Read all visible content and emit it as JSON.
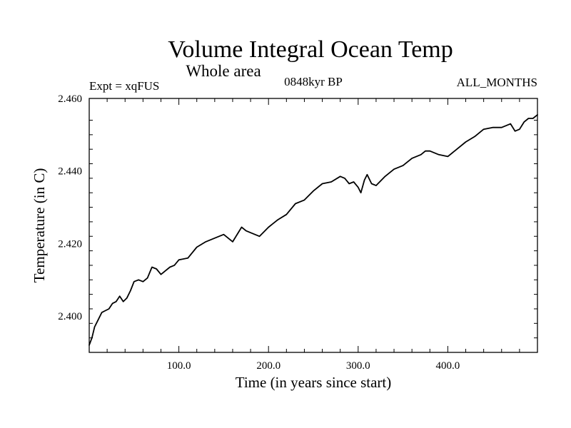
{
  "chart_data": {
    "type": "line",
    "title": "Volume Integral Ocean Temp",
    "subtitle": "Whole area",
    "annotations": {
      "left": "Expt = xqFUS",
      "center": "0848kyr BP",
      "right": "ALL_MONTHS"
    },
    "xlabel": "Time (in years since start)",
    "ylabel": "Temperature (in C)",
    "xlim": [
      0,
      500
    ],
    "ylim": [
      2.39,
      2.46
    ],
    "x_ticks": [
      100,
      200,
      300,
      400
    ],
    "x_tick_labels": [
      "100.0",
      "200.0",
      "300.0",
      "400.0"
    ],
    "y_ticks": [
      2.4,
      2.42,
      2.44,
      2.46
    ],
    "y_tick_labels": [
      "2.400",
      "2.420",
      "2.440",
      "2.460"
    ],
    "grid": false,
    "series": [
      {
        "name": "Volume Integral Ocean Temp",
        "color": "#000000",
        "x": [
          0,
          3,
          6,
          10,
          14,
          18,
          22,
          26,
          30,
          34,
          38,
          42,
          46,
          50,
          55,
          60,
          65,
          70,
          75,
          80,
          85,
          90,
          95,
          100,
          110,
          120,
          130,
          140,
          150,
          160,
          170,
          175,
          180,
          190,
          200,
          210,
          220,
          230,
          240,
          250,
          260,
          270,
          280,
          285,
          290,
          295,
          300,
          303,
          307,
          310,
          315,
          320,
          330,
          340,
          350,
          360,
          370,
          375,
          380,
          390,
          400,
          410,
          420,
          430,
          440,
          450,
          460,
          470,
          475,
          480,
          485,
          490,
          495,
          500
        ],
        "y": [
          2.392,
          2.394,
          2.397,
          2.399,
          2.401,
          2.4015,
          2.402,
          2.4035,
          2.404,
          2.4055,
          2.404,
          2.405,
          2.407,
          2.4095,
          2.41,
          2.4095,
          2.4105,
          2.4135,
          2.413,
          2.4115,
          2.4125,
          2.4135,
          2.414,
          2.4155,
          2.416,
          2.419,
          2.4205,
          2.4215,
          2.4225,
          2.4205,
          2.4245,
          2.4235,
          2.423,
          2.422,
          2.4245,
          2.4265,
          2.428,
          2.431,
          2.432,
          2.4345,
          2.4365,
          2.437,
          2.4385,
          2.438,
          2.4365,
          2.437,
          2.4355,
          2.434,
          2.4375,
          2.439,
          2.4365,
          2.436,
          2.4385,
          2.4405,
          2.4415,
          2.4435,
          2.4445,
          2.4455,
          2.4455,
          2.4445,
          2.444,
          2.446,
          2.448,
          2.4495,
          2.4515,
          2.452,
          2.452,
          2.453,
          2.451,
          2.4515,
          2.4535,
          2.4545,
          2.4545,
          2.4555
        ]
      }
    ]
  }
}
